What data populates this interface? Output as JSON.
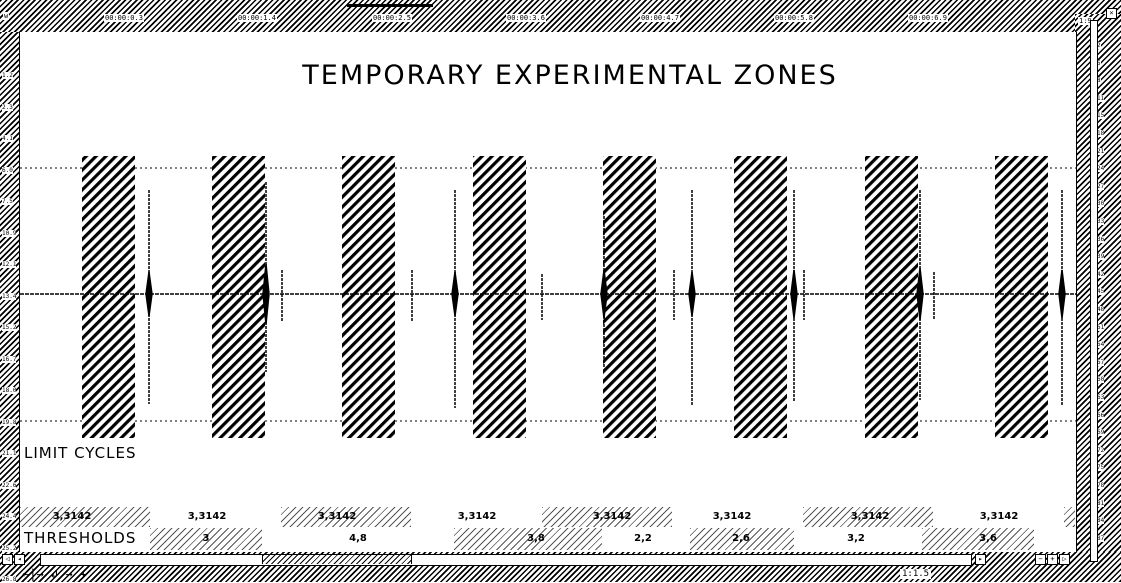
{
  "title": "TEMPORARY EXPERIMENTAL ZONES",
  "labels": {
    "limit_cycles": "LIMIT CYCLES",
    "thresholds": "THRESHOLDS"
  },
  "ruler": {
    "left_corner": "w",
    "top_labels": [
      "00:00:0.3",
      "00:00:1.4",
      "00:00:2.5",
      "00:00:3.6",
      "00:00:4.7",
      "00:00:5.8",
      "00:00:6.9"
    ],
    "right_corner": "1:9",
    "left_labels": [
      "1.2",
      "2.3",
      "4.1",
      "6.0",
      "7.5",
      "10.9",
      "12.1",
      "13.4",
      "15.2",
      "16.7",
      "18.0",
      "19.8",
      "21.1",
      "22.6",
      "24.4",
      "25.2",
      "26.8"
    ],
    "right_labels": [
      "2",
      "5",
      "8",
      "11",
      "15",
      "18",
      "21",
      "24",
      "27",
      "30",
      "33",
      "36",
      "39",
      "42",
      "45",
      "48",
      "51",
      "54",
      "57",
      "60",
      "63",
      "66",
      "69",
      "72",
      "75",
      "78",
      "81",
      "84",
      "87"
    ]
  },
  "zone_values": [
    "3,3142",
    "3,3142",
    "3,3142",
    "3,3142",
    "3,3142",
    "3,3142",
    "3,3142",
    "3,3142"
  ],
  "threshold_values": [
    "3",
    "4,8",
    "3,8",
    "2,2",
    "2,6",
    "3,2",
    "3,6"
  ],
  "bottom_bar": {
    "left_symbols": "←|→ ↲ → +",
    "right_text": "1:1.5"
  },
  "colors": {
    "ink": "#000000",
    "paper": "#ffffff"
  }
}
